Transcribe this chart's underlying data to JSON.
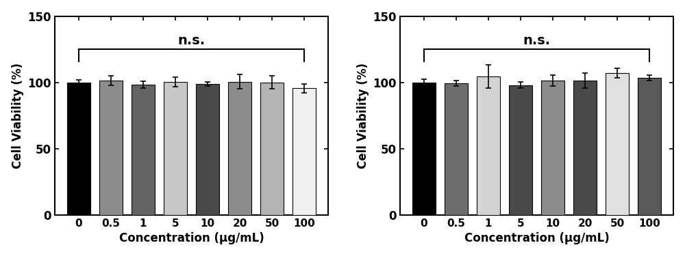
{
  "categories": [
    "0",
    "0.5",
    "1",
    "5",
    "10",
    "20",
    "50",
    "100"
  ],
  "chart1": {
    "values": [
      100,
      101.5,
      98.5,
      100.5,
      99,
      100.5,
      100,
      95.5
    ],
    "errors": [
      2.0,
      3.5,
      2.5,
      3.5,
      1.5,
      5.5,
      5.0,
      3.5
    ],
    "bar_colors": [
      "#000000",
      "#8c8c8c",
      "#646464",
      "#c8c8c8",
      "#4a4a4a",
      "#8c8c8c",
      "#b4b4b4",
      "#f0f0f0"
    ],
    "ylabel": "Cell Viability (%)",
    "xlabel": "Concentration (μg/mL)",
    "ns_text": "n.s.",
    "ylim": [
      0,
      150
    ],
    "yticks": [
      0,
      50,
      100,
      150
    ]
  },
  "chart2": {
    "values": [
      100,
      99.5,
      104.5,
      98,
      101.5,
      101.5,
      107,
      103.5
    ],
    "errors": [
      2.5,
      2.0,
      9.0,
      2.5,
      4.0,
      5.5,
      3.5,
      2.0
    ],
    "bar_colors": [
      "#000000",
      "#6e6e6e",
      "#d4d4d4",
      "#4a4a4a",
      "#8c8c8c",
      "#4a4a4a",
      "#e0e0e0",
      "#5a5a5a"
    ],
    "ylabel": "Cell Viability (%)",
    "xlabel": "Concentration (μg/mL)",
    "ns_text": "n.s.",
    "ylim": [
      0,
      150
    ],
    "yticks": [
      0,
      50,
      100,
      150
    ]
  },
  "bar_width": 0.72,
  "figsize": [
    10.0,
    3.75
  ],
  "dpi": 100
}
